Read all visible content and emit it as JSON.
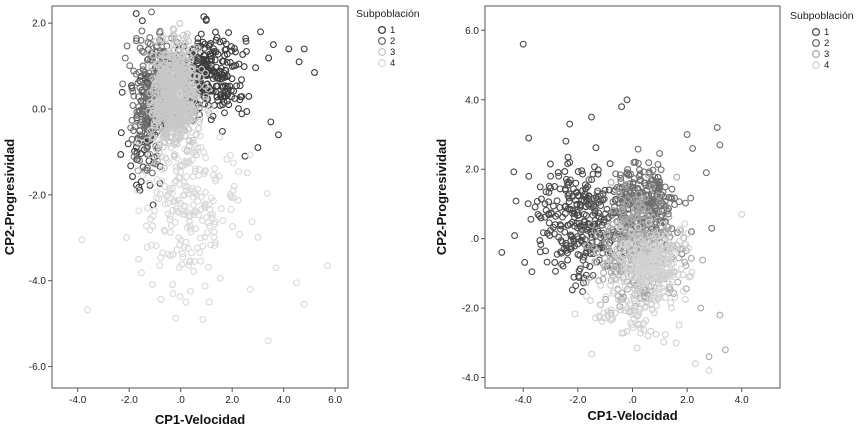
{
  "chart_data": [
    {
      "type": "scatter",
      "xlabel": "CP1-Velocidad",
      "ylabel": "CP2-Progresividad",
      "xlim": [
        -5.0,
        6.5
      ],
      "ylim": [
        -6.5,
        2.4
      ],
      "xticks": [
        -4.0,
        -2.0,
        0.0,
        2.0,
        4.0,
        6.0
      ],
      "xtick_labels": [
        "-4.0",
        "-2.0",
        ".0",
        "2.0",
        "4.0",
        "6.0"
      ],
      "yticks": [
        -6.0,
        -4.0,
        -2.0,
        0.0,
        2.0
      ],
      "ytick_labels": [
        "-6.0",
        "-4.0",
        "-2.0",
        "0.0",
        "2.0"
      ],
      "grid": false,
      "legend": {
        "title": "Subpoblación",
        "placement": "top-right"
      },
      "marker": "hollow-circle",
      "series": [
        {
          "name": "1",
          "color": "#3c3c3c",
          "clusters": [
            {
              "cx": 1.0,
              "cy": 0.8,
              "sx": 0.75,
              "sy": 0.5,
              "n": 300
            },
            {
              "cx": -1.3,
              "cy": -0.3,
              "sx": 0.4,
              "sy": 0.9,
              "n": 90
            }
          ],
          "outliers": [
            [
              3.1,
              1.8
            ],
            [
              3.6,
              1.5
            ],
            [
              4.2,
              1.4
            ],
            [
              4.6,
              1.1
            ],
            [
              4.8,
              1.4
            ],
            [
              5.2,
              0.85
            ],
            [
              3.5,
              -0.3
            ],
            [
              3.8,
              -0.6
            ],
            [
              3.0,
              -0.9
            ],
            [
              2.5,
              -1.1
            ]
          ]
        },
        {
          "name": "2",
          "color": "#6e6e6e",
          "clusters": [
            {
              "cx": -0.8,
              "cy": 0.6,
              "sx": 0.5,
              "sy": 0.55,
              "n": 220
            },
            {
              "cx": -1.5,
              "cy": -0.5,
              "sx": 0.25,
              "sy": 0.5,
              "n": 60
            }
          ],
          "outliers": [
            [
              -1.5,
              1.35
            ],
            [
              -1.9,
              0.5
            ],
            [
              -1.6,
              -1.2
            ]
          ]
        },
        {
          "name": "3",
          "color": "#c8c8c8",
          "clusters": [
            {
              "cx": -0.2,
              "cy": 0.3,
              "sx": 0.45,
              "sy": 0.6,
              "n": 650
            }
          ],
          "outliers": []
        },
        {
          "name": "4",
          "color": "#d9d9d9",
          "clusters": [
            {
              "cx": 0.3,
              "cy": -2.3,
              "sx": 1.0,
              "sy": 0.85,
              "n": 230
            }
          ],
          "outliers": [
            [
              3.4,
              -5.4
            ],
            [
              4.8,
              -4.55
            ],
            [
              4.5,
              -4.05
            ],
            [
              5.7,
              -3.65
            ],
            [
              3.7,
              -3.7
            ],
            [
              2.7,
              -4.2
            ],
            [
              -0.3,
              -4.3
            ],
            [
              0.2,
              -4.5
            ]
          ]
        }
      ]
    },
    {
      "type": "scatter",
      "xlabel": "CP1-Velocidad",
      "ylabel": "CP2-Progresividad",
      "xlim": [
        -5.4,
        5.4
      ],
      "ylim": [
        -4.3,
        6.7
      ],
      "xticks": [
        -4.0,
        -2.0,
        0.0,
        2.0,
        4.0
      ],
      "xtick_labels": [
        "-4.0",
        "-2.0",
        ".0",
        "2.0",
        "4.0"
      ],
      "yticks": [
        -4.0,
        -2.0,
        0.0,
        2.0,
        4.0,
        6.0
      ],
      "ytick_labels": [
        "-4.0",
        "-2.0",
        ".0",
        "2.0",
        "4.0",
        "6.0"
      ],
      "grid": false,
      "legend": {
        "title": "Subpoblación",
        "placement": "top-right"
      },
      "marker": "hollow-circle",
      "series": [
        {
          "name": "1",
          "color": "#4a4a4a",
          "clusters": [
            {
              "cx": -1.9,
              "cy": 0.5,
              "sx": 0.9,
              "sy": 0.9,
              "n": 300
            }
          ],
          "outliers": [
            [
              -4.0,
              5.6
            ],
            [
              -3.8,
              2.9
            ],
            [
              -2.3,
              3.3
            ],
            [
              -1.5,
              3.5
            ],
            [
              -0.4,
              3.8
            ],
            [
              -0.2,
              4.0
            ],
            [
              -3.0,
              1.8
            ],
            [
              -3.2,
              1.0
            ]
          ]
        },
        {
          "name": "2",
          "color": "#6e6e6e",
          "clusters": [
            {
              "cx": 0.3,
              "cy": 0.9,
              "sx": 0.7,
              "sy": 0.6,
              "n": 300
            }
          ],
          "outliers": [
            [
              2.0,
              3.0
            ],
            [
              3.1,
              3.2
            ],
            [
              3.2,
              2.7
            ],
            [
              2.2,
              2.6
            ],
            [
              2.9,
              0.3
            ],
            [
              2.7,
              1.9
            ]
          ]
        },
        {
          "name": "3",
          "color": "#a8a8a8",
          "clusters": [
            {
              "cx": 0.2,
              "cy": -0.3,
              "sx": 0.75,
              "sy": 0.75,
              "n": 350
            }
          ],
          "outliers": [
            [
              3.2,
              -2.2
            ],
            [
              3.4,
              -3.2
            ],
            [
              2.8,
              -3.4
            ],
            [
              2.5,
              -2.0
            ]
          ]
        },
        {
          "name": "4",
          "color": "#d2d2d2",
          "clusters": [
            {
              "cx": 0.6,
              "cy": -0.7,
              "sx": 0.6,
              "sy": 0.55,
              "n": 250
            },
            {
              "cx": 0.0,
              "cy": -2.0,
              "sx": 0.9,
              "sy": 0.45,
              "n": 80
            }
          ],
          "outliers": [
            [
              4.0,
              0.7
            ],
            [
              2.8,
              -3.8
            ],
            [
              2.3,
              -3.6
            ],
            [
              1.6,
              -3.0
            ]
          ]
        }
      ]
    }
  ]
}
